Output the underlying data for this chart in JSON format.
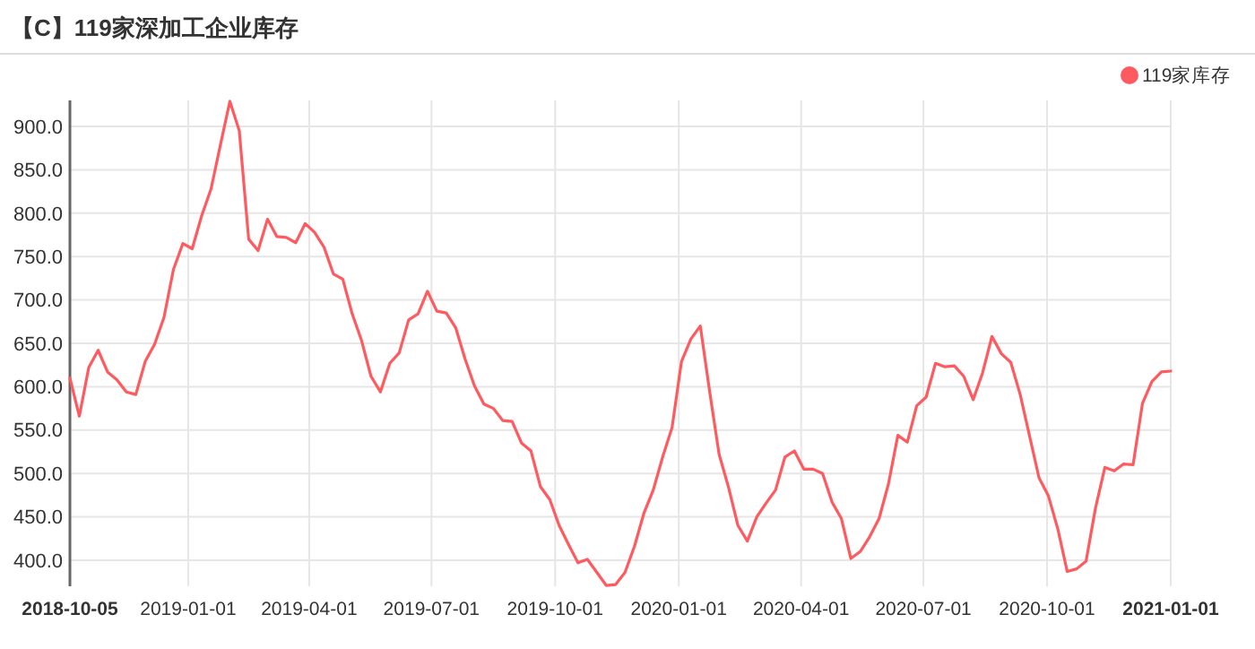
{
  "chart_data": {
    "type": "line",
    "title": "【C】119家深加工企业库存",
    "x": [
      "2018-10-05",
      "2018-10-12",
      "2018-10-19",
      "2018-10-26",
      "2018-11-02",
      "2018-11-09",
      "2018-11-16",
      "2018-11-23",
      "2018-11-30",
      "2018-12-07",
      "2018-12-14",
      "2018-12-21",
      "2018-12-28",
      "2019-01-04",
      "2019-01-11",
      "2019-01-18",
      "2019-01-25",
      "2019-02-01",
      "2019-02-08",
      "2019-02-15",
      "2019-02-22",
      "2019-03-01",
      "2019-03-08",
      "2019-03-15",
      "2019-03-22",
      "2019-03-29",
      "2019-04-05",
      "2019-04-12",
      "2019-04-19",
      "2019-04-26",
      "2019-05-03",
      "2019-05-10",
      "2019-05-17",
      "2019-05-24",
      "2019-05-31",
      "2019-06-07",
      "2019-06-14",
      "2019-06-21",
      "2019-06-28",
      "2019-07-05",
      "2019-07-12",
      "2019-07-19",
      "2019-07-26",
      "2019-08-02",
      "2019-08-09",
      "2019-08-16",
      "2019-08-23",
      "2019-08-30",
      "2019-09-06",
      "2019-09-13",
      "2019-09-20",
      "2019-09-27",
      "2019-10-04",
      "2019-10-11",
      "2019-10-18",
      "2019-10-25",
      "2019-11-01",
      "2019-11-08",
      "2019-11-15",
      "2019-11-22",
      "2019-11-29",
      "2019-12-06",
      "2019-12-13",
      "2019-12-20",
      "2019-12-27",
      "2020-01-03",
      "2020-01-10",
      "2020-01-17",
      "2020-01-24",
      "2020-01-31",
      "2020-02-07",
      "2020-02-14",
      "2020-02-21",
      "2020-02-28",
      "2020-03-06",
      "2020-03-13",
      "2020-03-20",
      "2020-03-27",
      "2020-04-03",
      "2020-04-10",
      "2020-04-17",
      "2020-04-24",
      "2020-05-01",
      "2020-05-08",
      "2020-05-15",
      "2020-05-22",
      "2020-05-29",
      "2020-06-05",
      "2020-06-12",
      "2020-06-19",
      "2020-06-26",
      "2020-07-03",
      "2020-07-10",
      "2020-07-17",
      "2020-07-24",
      "2020-07-31",
      "2020-08-07",
      "2020-08-14",
      "2020-08-21",
      "2020-08-28",
      "2020-09-04",
      "2020-09-11",
      "2020-09-18",
      "2020-09-25",
      "2020-10-02",
      "2020-10-09",
      "2020-10-16",
      "2020-10-23",
      "2020-10-30",
      "2020-11-06",
      "2020-11-13",
      "2020-11-20",
      "2020-11-27",
      "2020-12-04",
      "2020-12-11",
      "2020-12-18",
      "2020-12-25",
      "2021-01-01"
    ],
    "series": [
      {
        "name": "119家库存",
        "color": "#ff5a5f",
        "values": [
          610,
          566,
          622,
          642,
          617,
          608,
          594,
          591,
          629,
          649,
          680,
          735,
          765,
          759,
          797,
          828,
          879,
          929,
          895,
          770,
          757,
          793,
          773,
          772,
          766,
          788,
          778,
          761,
          730,
          724,
          684,
          653,
          612,
          594,
          627,
          639,
          677,
          684,
          710,
          687,
          685,
          668,
          632,
          601,
          580,
          575,
          561,
          560,
          535,
          526,
          485,
          470,
          440,
          418,
          397,
          401,
          386,
          371,
          372,
          386,
          416,
          454,
          481,
          519,
          553,
          629,
          655,
          670,
          594,
          522,
          484,
          440,
          422,
          450,
          466,
          481,
          519,
          526,
          505,
          505,
          500,
          467,
          448,
          402,
          410,
          427,
          448,
          488,
          544,
          536,
          578,
          588,
          627,
          623,
          624,
          612,
          585,
          616,
          658,
          638,
          628,
          591,
          543,
          495,
          474,
          436,
          387,
          390,
          399,
          460,
          507,
          503,
          511,
          510,
          581,
          606,
          617,
          618
        ]
      }
    ],
    "xlim": [
      "2018-10-05",
      "2021-01-01"
    ],
    "xticks": [
      "2018-10-05",
      "2019-01-01",
      "2019-04-01",
      "2019-07-01",
      "2019-10-01",
      "2020-01-01",
      "2020-04-01",
      "2020-07-01",
      "2020-10-01",
      "2021-01-01"
    ],
    "ylim": [
      370,
      930
    ],
    "yticks": [
      {
        "value": 400,
        "label": "400.0"
      },
      {
        "value": 450,
        "label": "450.0"
      },
      {
        "value": 500,
        "label": "500.0"
      },
      {
        "value": 550,
        "label": "550.0"
      },
      {
        "value": 600,
        "label": "600.0"
      },
      {
        "value": 650,
        "label": "650.0"
      },
      {
        "value": 700,
        "label": "700.0"
      },
      {
        "value": 750,
        "label": "750.0"
      },
      {
        "value": 800,
        "label": "800.0"
      },
      {
        "value": 850,
        "label": "850.0"
      },
      {
        "value": 900,
        "label": "900.0"
      }
    ],
    "grid": true,
    "legend": "top right"
  }
}
